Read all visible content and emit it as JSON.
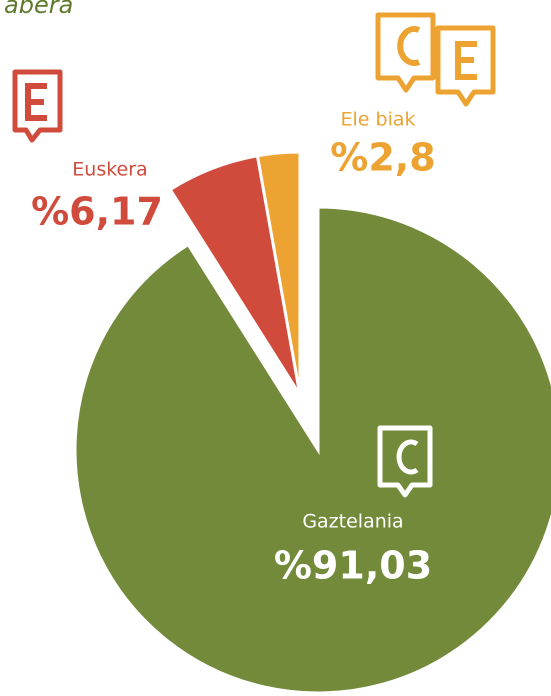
{
  "chart_data": {
    "type": "pie",
    "title": "abera",
    "categories": [
      "Gaztelania",
      "Euskera",
      "Ele biak"
    ],
    "values": [
      91.03,
      6.17,
      2.8
    ],
    "value_labels": [
      "%91,03",
      "%6,17",
      "%2,8"
    ],
    "colors": [
      "#728a3a",
      "#d04b3b",
      "#eca331"
    ]
  }
}
